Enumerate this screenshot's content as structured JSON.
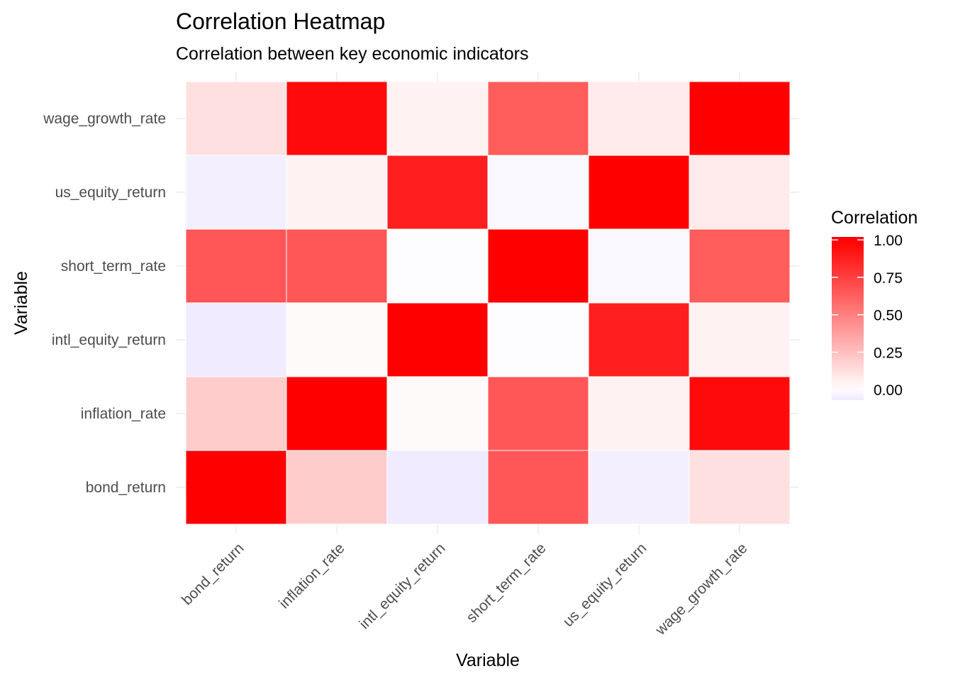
{
  "chart_data": {
    "type": "heatmap",
    "title": "Correlation Heatmap",
    "subtitle": "Correlation between key economic indicators",
    "xlabel": "Variable",
    "ylabel": "Variable",
    "x_categories": [
      "bond_return",
      "inflation_rate",
      "intl_equity_return",
      "short_term_rate",
      "us_equity_return",
      "wage_growth_rate"
    ],
    "y_categories": [
      "bond_return",
      "inflation_rate",
      "intl_equity_return",
      "short_term_rate",
      "us_equity_return",
      "wage_growth_rate"
    ],
    "values": [
      [
        1.0,
        0.2,
        -0.06,
        0.66,
        -0.05,
        0.12
      ],
      [
        0.2,
        1.0,
        0.02,
        0.66,
        0.05,
        0.96
      ],
      [
        -0.06,
        0.02,
        1.0,
        -0.01,
        0.88,
        0.05
      ],
      [
        0.66,
        0.66,
        -0.01,
        1.0,
        -0.02,
        0.64
      ],
      [
        -0.05,
        0.05,
        0.88,
        -0.02,
        1.0,
        0.08
      ],
      [
        0.12,
        0.96,
        0.05,
        0.64,
        0.08,
        1.0
      ]
    ],
    "color_scale": {
      "low": "#eee8ff",
      "mid": "#ffffff",
      "high": "#ff0000",
      "low_value": -0.07,
      "mid_value": 0,
      "high_value": 1
    },
    "legend": {
      "title": "Correlation",
      "ticks": [
        "1.00",
        "0.75",
        "0.50",
        "0.25",
        "0.00"
      ],
      "tick_values": [
        1.0,
        0.75,
        0.5,
        0.25,
        0.0
      ],
      "placement": "right"
    },
    "grid": true
  }
}
